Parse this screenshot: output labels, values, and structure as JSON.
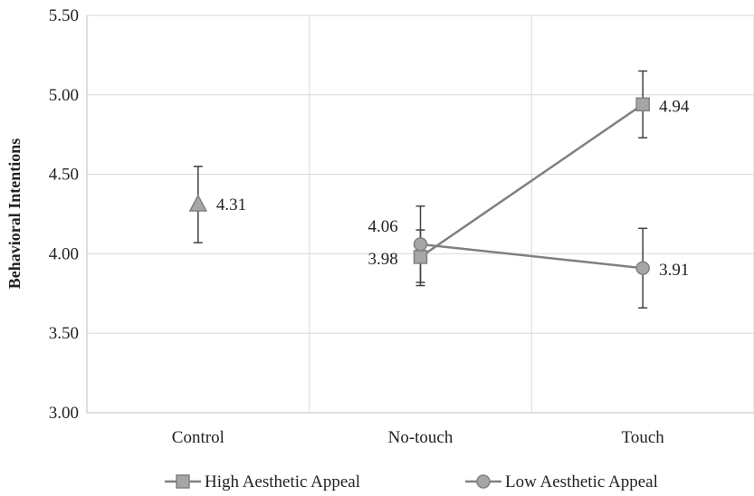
{
  "chart_data": {
    "type": "line",
    "title": "",
    "xlabel": "",
    "ylabel": "Behavioral Intentions",
    "categories": [
      "Control",
      "No-touch",
      "Touch"
    ],
    "ylim": [
      3.0,
      5.5
    ],
    "yticks": [
      "3.00",
      "3.50",
      "4.00",
      "4.50",
      "5.00",
      "5.50"
    ],
    "grid": "vertical and horizontal",
    "legend_position": "bottom",
    "control": {
      "value": 4.31,
      "label": "4.31",
      "error": [
        4.07,
        4.55
      ],
      "marker": "triangle"
    },
    "series": [
      {
        "name": "High Aesthetic Appeal",
        "marker": "square",
        "x": [
          "No-touch",
          "Touch"
        ],
        "values": [
          3.98,
          4.94
        ],
        "labels": [
          "3.98",
          "4.94"
        ],
        "errors": [
          [
            3.8,
            4.15
          ],
          [
            4.73,
            5.15
          ]
        ]
      },
      {
        "name": "Low Aesthetic Appeal",
        "marker": "circle",
        "x": [
          "No-touch",
          "Touch"
        ],
        "values": [
          4.06,
          3.91
        ],
        "labels": [
          "4.06",
          "3.91"
        ],
        "errors": [
          [
            3.82,
            4.3
          ],
          [
            3.66,
            4.16
          ]
        ]
      }
    ],
    "colors": {
      "line": "#808080",
      "marker_fill": "#a6a6a6",
      "marker_stroke": "#808080",
      "error_bar": "#404040",
      "grid": "#d9d9d9",
      "axis": "#bfbfbf"
    }
  }
}
